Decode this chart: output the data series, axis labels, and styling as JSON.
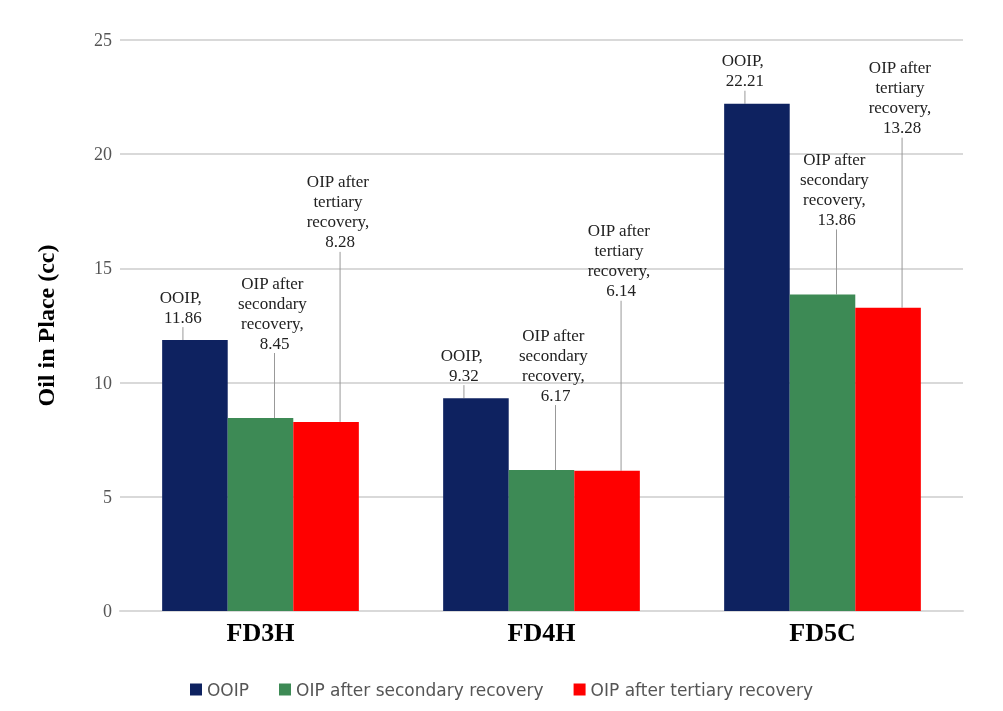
{
  "chart_data": {
    "type": "bar",
    "ylabel": "Oil in Place (cc)",
    "categories": [
      "FD3H",
      "FD4H",
      "FD5C"
    ],
    "series": [
      {
        "name": "OOIP",
        "color": "#0e2260",
        "values": [
          11.86,
          9.32,
          22.21
        ],
        "value_labels": [
          "OOIP, 11.86",
          "OOIP, 9.32",
          "OOIP, 22.21"
        ]
      },
      {
        "name": "OIP after secondary recovery",
        "color": "#3d8a55",
        "values": [
          8.45,
          6.17,
          13.86
        ],
        "value_labels": [
          "OIP after secondary recovery, 8.45",
          "OIP after secondary recovery, 6.17",
          "OIP after secondary recovery, 13.86"
        ]
      },
      {
        "name": "OIP after tertiary recovery",
        "color": "#ff0000",
        "values": [
          8.28,
          6.14,
          13.28
        ],
        "value_labels": [
          "OIP after tertiary recovery, 8.28",
          "OIP after tertiary recovery, 6.14",
          "OIP after tertiary recovery, 13.28"
        ]
      }
    ],
    "ylim": [
      0,
      25
    ],
    "yticks": [
      0,
      5,
      10,
      15,
      20,
      25
    ],
    "grid": "y",
    "legend": "bottom"
  }
}
